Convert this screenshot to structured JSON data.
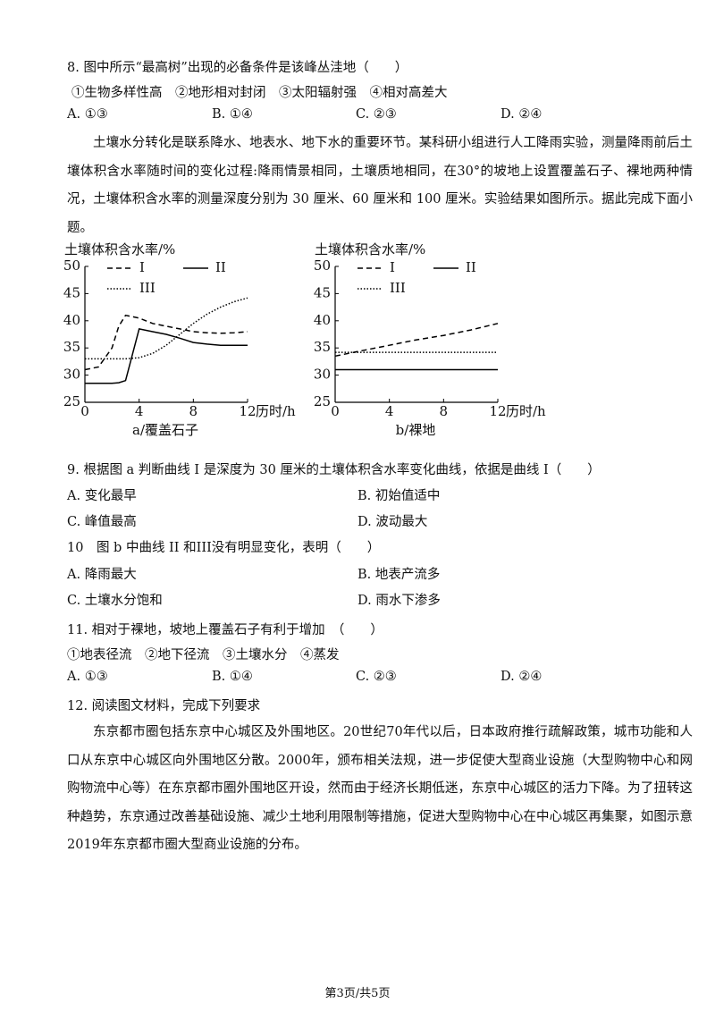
{
  "q8": {
    "stem": "8. 图中所示“最高树”出现的必备条件是该峰丛洼地（　　）",
    "items": "①生物多样性高　②地形相对封闭　③太阳辐射强　④相对高差大",
    "options": [
      "A. ①③",
      "B. ①④",
      "C. ②③",
      "D. ②④"
    ]
  },
  "passage1": "土壤水分转化是联系降水、地表水、地下水的重要环节。某科研小组进行人工降雨实验，测量降雨前后土壤体积含水率随时间的变化过程:降雨情景相同，土壤质地相同，在30°的坡地上设置覆盖石子、裸地两种情况，土壤体积含水率的测量深度分别为 30 厘米、60 厘米和 100 厘米。实验结果如图所示。据此完成下面小题。",
  "chart_data": [
    {
      "type": "line",
      "y_label": "土壤体积含水率/%",
      "x_label": "历时/h",
      "caption": "a/覆盖石子",
      "xlim": [
        0,
        12
      ],
      "ylim": [
        25,
        50
      ],
      "xticks": [
        0,
        4,
        8,
        12
      ],
      "yticks": [
        25,
        30,
        35,
        40,
        45,
        50
      ],
      "x": [
        0,
        1,
        2,
        2.5,
        3,
        4,
        5,
        6,
        7,
        8,
        9,
        10,
        11,
        12
      ],
      "series": [
        {
          "name": "I",
          "color": "#000000",
          "dash": "dashed",
          "values": [
            31,
            31.5,
            35,
            39,
            41,
            40.5,
            39.5,
            39,
            38.5,
            38,
            37.8,
            37.7,
            37.8,
            38
          ]
        },
        {
          "name": "II",
          "color": "#000000",
          "dash": "solid",
          "values": [
            28.5,
            28.5,
            28.5,
            28.6,
            29,
            38.5,
            38,
            37.5,
            36.8,
            36,
            35.7,
            35.5,
            35.5,
            35.5
          ]
        },
        {
          "name": "III",
          "color": "#000000",
          "dash": "dotted",
          "values": [
            33,
            33,
            33,
            33,
            33,
            33.2,
            34,
            35.5,
            37.5,
            39.5,
            41.2,
            42.5,
            43.5,
            44.2
          ]
        }
      ]
    },
    {
      "type": "line",
      "y_label": "土壤体积含水率/%",
      "x_label": "历时/h",
      "caption": "b/裸地",
      "xlim": [
        0,
        12
      ],
      "ylim": [
        25,
        50
      ],
      "xticks": [
        0,
        4,
        8,
        12
      ],
      "yticks": [
        25,
        30,
        35,
        40,
        45,
        50
      ],
      "x": [
        0,
        2,
        4,
        6,
        8,
        10,
        12
      ],
      "series": [
        {
          "name": "I",
          "color": "#000000",
          "dash": "dashed",
          "values": [
            33.5,
            34.5,
            35.5,
            36.5,
            37.3,
            38.3,
            39.5
          ]
        },
        {
          "name": "II",
          "color": "#000000",
          "dash": "solid",
          "values": [
            31,
            31,
            31,
            31,
            31,
            31,
            31
          ]
        },
        {
          "name": "III",
          "color": "#000000",
          "dash": "dotted",
          "values": [
            34.2,
            34.2,
            34.2,
            34.2,
            34.2,
            34.2,
            34.2
          ]
        }
      ]
    }
  ],
  "q9": {
    "stem": "9. 根据图 a 判断曲线 I 是深度为 30 厘米的土壤体积含水率变化曲线，依据是曲线 I（　　）",
    "options": [
      "A. 变化最早",
      "B. 初始值适中",
      "C. 峰值最高",
      "D. 波动最大"
    ]
  },
  "q10": {
    "stem": "10　图 b 中曲线 II 和III没有明显变化，表明（　　）",
    "options": [
      "A. 降雨最大",
      "B. 地表产流多",
      "C. 土壤水分饱和",
      "D. 雨水下渗多"
    ]
  },
  "q11": {
    "stem": "11. 相对于裸地，坡地上覆盖石子有利于增加　（　　）",
    "items": "①地表径流　②地下径流　③土壤水分　④蒸发",
    "options": [
      "A. ①③",
      "B. ①④",
      "C. ②③",
      "D. ②④"
    ]
  },
  "q12": {
    "stem": "12. 阅读图文材料，完成下列要求",
    "passage": "东京都市圈包括东京中心城区及外围地区。20世纪70年代以后，日本政府推行疏解政策，城市功能和人口从东京中心城区向外围地区分散。2000年，颁布相关法规，进一步促使大型商业设施（大型购物中心和网购物流中心等）在东京都市圈外围地区开设，然而由于经济长期低迷，东京中心城区的活力下降。为了扭转这种趋势，东京通过改善基础设施、减少土地利用限制等措施，促进大型购物中心在中心城区再集聚，如图示意2019年东京都市圈大型商业设施的分布。"
  },
  "footer": "第3页/共5页"
}
